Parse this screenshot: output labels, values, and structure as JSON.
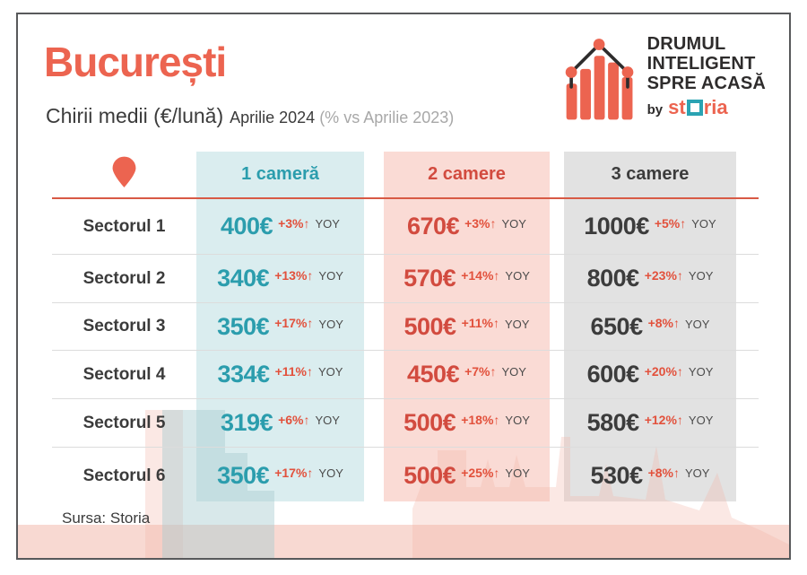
{
  "page": {
    "title": "București",
    "subtitle": "Chirii medii (€/lună)",
    "subtitle_period": "Aprilie 2024",
    "subtitle_note": "(% vs Aprilie 2023)",
    "source": "Sursa: Storia"
  },
  "logo": {
    "line1": "DRUMUL",
    "line2": "INTELIGENT",
    "line3": "SPRE ACASĂ",
    "by": "by",
    "brand": "storia"
  },
  "colors": {
    "accent": "#EC6450",
    "change_red": "#E2513C",
    "header_line_red": "#D85A45",
    "teal_text": "#2B9DAD",
    "teal_bg": "#DAEDEF",
    "red_text": "#D24B3F",
    "red_bg": "#FADBD5",
    "gray_text": "#3C3C3C",
    "gray_bg": "#E2E2E2",
    "brand_o_teal": "#2AA3B3"
  },
  "table": {
    "corner_icon": "location-pin-icon",
    "columns": [
      {
        "label": "1 cameră",
        "text_color": "#2B9DAD",
        "bg": "#DAEDEF"
      },
      {
        "label": "2 camere",
        "text_color": "#D24B3F",
        "bg": "#FADBD5"
      },
      {
        "label": "3 camere",
        "text_color": "#3C3C3C",
        "bg": "#E2E2E2"
      }
    ],
    "rows": [
      {
        "label": "Sectorul 1",
        "cells": [
          {
            "price": "400€",
            "change": "+3%↑",
            "yoy": "YOY"
          },
          {
            "price": "670€",
            "change": "+3%↑",
            "yoy": "YOY"
          },
          {
            "price": "1000€",
            "change": "+5%↑",
            "yoy": "YOY"
          }
        ]
      },
      {
        "label": "Sectorul 2",
        "cells": [
          {
            "price": "340€",
            "change": "+13%↑",
            "yoy": "YOY"
          },
          {
            "price": "570€",
            "change": "+14%↑",
            "yoy": "YOY"
          },
          {
            "price": "800€",
            "change": "+23%↑",
            "yoy": "YOY"
          }
        ]
      },
      {
        "label": "Sectorul 3",
        "cells": [
          {
            "price": "350€",
            "change": "+17%↑",
            "yoy": "YOY"
          },
          {
            "price": "500€",
            "change": "+11%↑",
            "yoy": "YOY"
          },
          {
            "price": "650€",
            "change": "+8%↑",
            "yoy": "YOY"
          }
        ]
      },
      {
        "label": "Sectorul 4",
        "cells": [
          {
            "price": "334€",
            "change": "+11%↑",
            "yoy": "YOY"
          },
          {
            "price": "450€",
            "change": "+7%↑",
            "yoy": "YOY"
          },
          {
            "price": "600€",
            "change": "+20%↑",
            "yoy": "YOY"
          }
        ]
      },
      {
        "label": "Sectorul 5",
        "cells": [
          {
            "price": "319€",
            "change": "+6%↑",
            "yoy": "YOY"
          },
          {
            "price": "500€",
            "change": "+18%↑",
            "yoy": "YOY"
          },
          {
            "price": "580€",
            "change": "+12%↑",
            "yoy": "YOY"
          }
        ]
      },
      {
        "label": "Sectorul 6",
        "cells": [
          {
            "price": "350€",
            "change": "+17%↑",
            "yoy": "YOY"
          },
          {
            "price": "500€",
            "change": "+25%↑",
            "yoy": "YOY"
          },
          {
            "price": "530€",
            "change": "+8%↑",
            "yoy": "YOY"
          }
        ]
      }
    ]
  },
  "chart_data": {
    "type": "table",
    "title": "București — Chirii medii (€/lună) Aprilie 2024 (% vs Aprilie 2023)",
    "unit": "€/lună",
    "categories": [
      "Sectorul 1",
      "Sectorul 2",
      "Sectorul 3",
      "Sectorul 4",
      "Sectorul 5",
      "Sectorul 6"
    ],
    "series": [
      {
        "name": "1 cameră",
        "values": [
          400,
          340,
          350,
          334,
          319,
          350
        ],
        "yoy_change_pct": [
          3,
          13,
          17,
          11,
          6,
          17
        ]
      },
      {
        "name": "2 camere",
        "values": [
          670,
          570,
          500,
          450,
          500,
          500
        ],
        "yoy_change_pct": [
          3,
          14,
          11,
          7,
          18,
          25
        ]
      },
      {
        "name": "3 camere",
        "values": [
          1000,
          800,
          650,
          600,
          580,
          530
        ],
        "yoy_change_pct": [
          5,
          23,
          8,
          20,
          12,
          8
        ]
      }
    ],
    "source": "Sursa: Storia"
  }
}
